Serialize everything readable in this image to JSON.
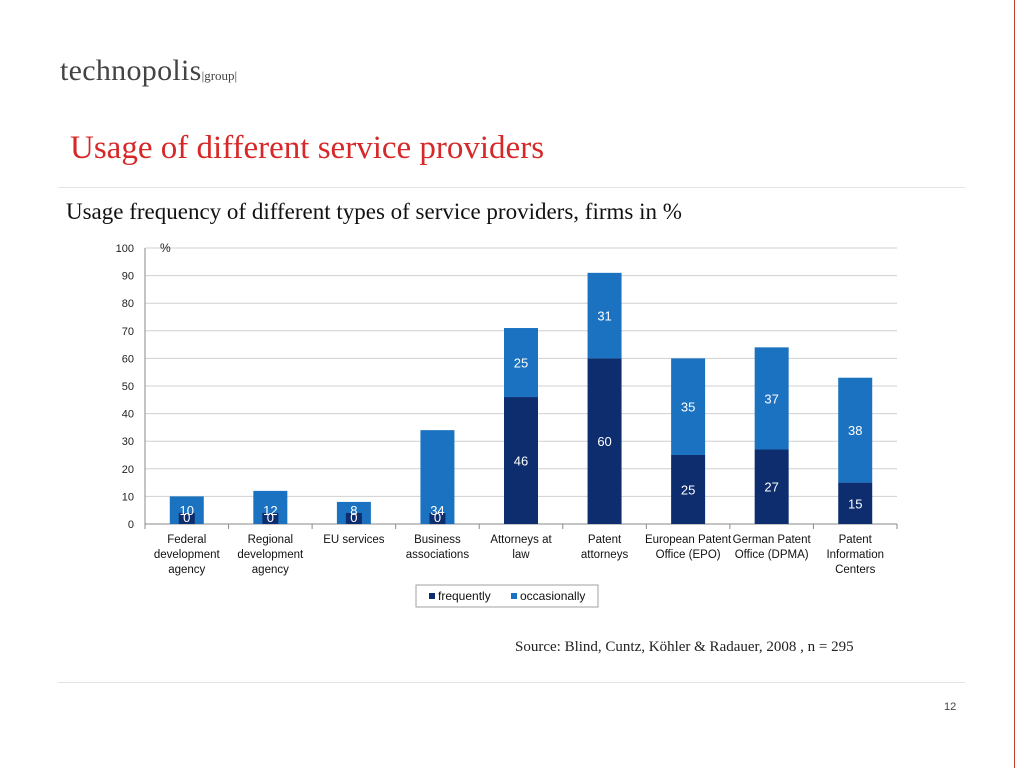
{
  "logo": {
    "main": "technopolis",
    "sub": "|group|"
  },
  "slide": {
    "title": "Usage of different service providers",
    "subtitle": "Usage frequency of different types of service providers, firms in %",
    "source": "Source: Blind, Cuntz, Köhler & Radauer, 2008 , n = 295",
    "page_number": "12"
  },
  "chart_data": {
    "type": "bar",
    "stacked": true,
    "categories": [
      "Federal development agency",
      "Regional development agency",
      "EU services",
      "Business associations",
      "Attorneys at law",
      "Patent attorneys",
      "European Patent Office (EPO)",
      "German Patent Office (DPMA)",
      "Patent Information Centers"
    ],
    "series": [
      {
        "name": "frequently",
        "color": "#0d2d6e",
        "values": [
          0,
          0,
          0,
          0,
          46,
          60,
          25,
          27,
          15
        ]
      },
      {
        "name": "occasionally",
        "color": "#1a72c0",
        "values": [
          10,
          12,
          8,
          34,
          25,
          31,
          35,
          37,
          38
        ]
      }
    ],
    "ylabel": "%",
    "ylim": [
      0,
      100
    ],
    "yticks": [
      0,
      10,
      20,
      30,
      40,
      50,
      60,
      70,
      80,
      90,
      100
    ],
    "grid": true,
    "legend_position": "bottom"
  }
}
